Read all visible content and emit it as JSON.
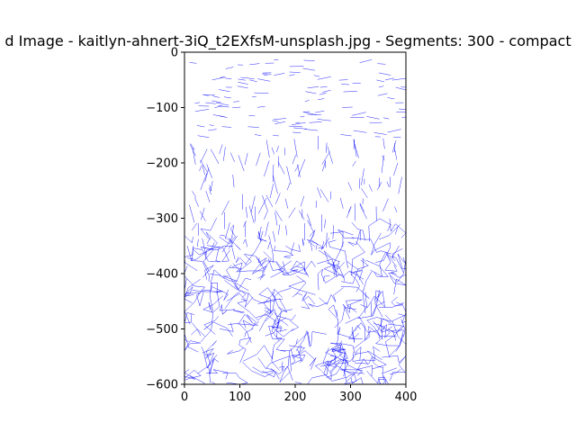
{
  "chart_data": {
    "type": "line",
    "title": "d Image - kaitlyn-ahnert-3iQ_t2EXfsM-unsplash.jpg - Segments: 300 - compact",
    "xlabel": "",
    "ylabel": "",
    "xlim": [
      0,
      400
    ],
    "ylim": [
      -600,
      0
    ],
    "xticks": [
      0,
      100,
      200,
      300,
      400
    ],
    "yticks": [
      0,
      -100,
      -200,
      -300,
      -400,
      -500,
      -600
    ],
    "x_tick_labels": [
      "0",
      "100",
      "200",
      "300",
      "400"
    ],
    "y_tick_labels": [
      "0",
      "−100",
      "−200",
      "−300",
      "−400",
      "−500",
      "−600"
    ],
    "grid": false,
    "line_color": "#0000ff",
    "segment_count": 300
  }
}
